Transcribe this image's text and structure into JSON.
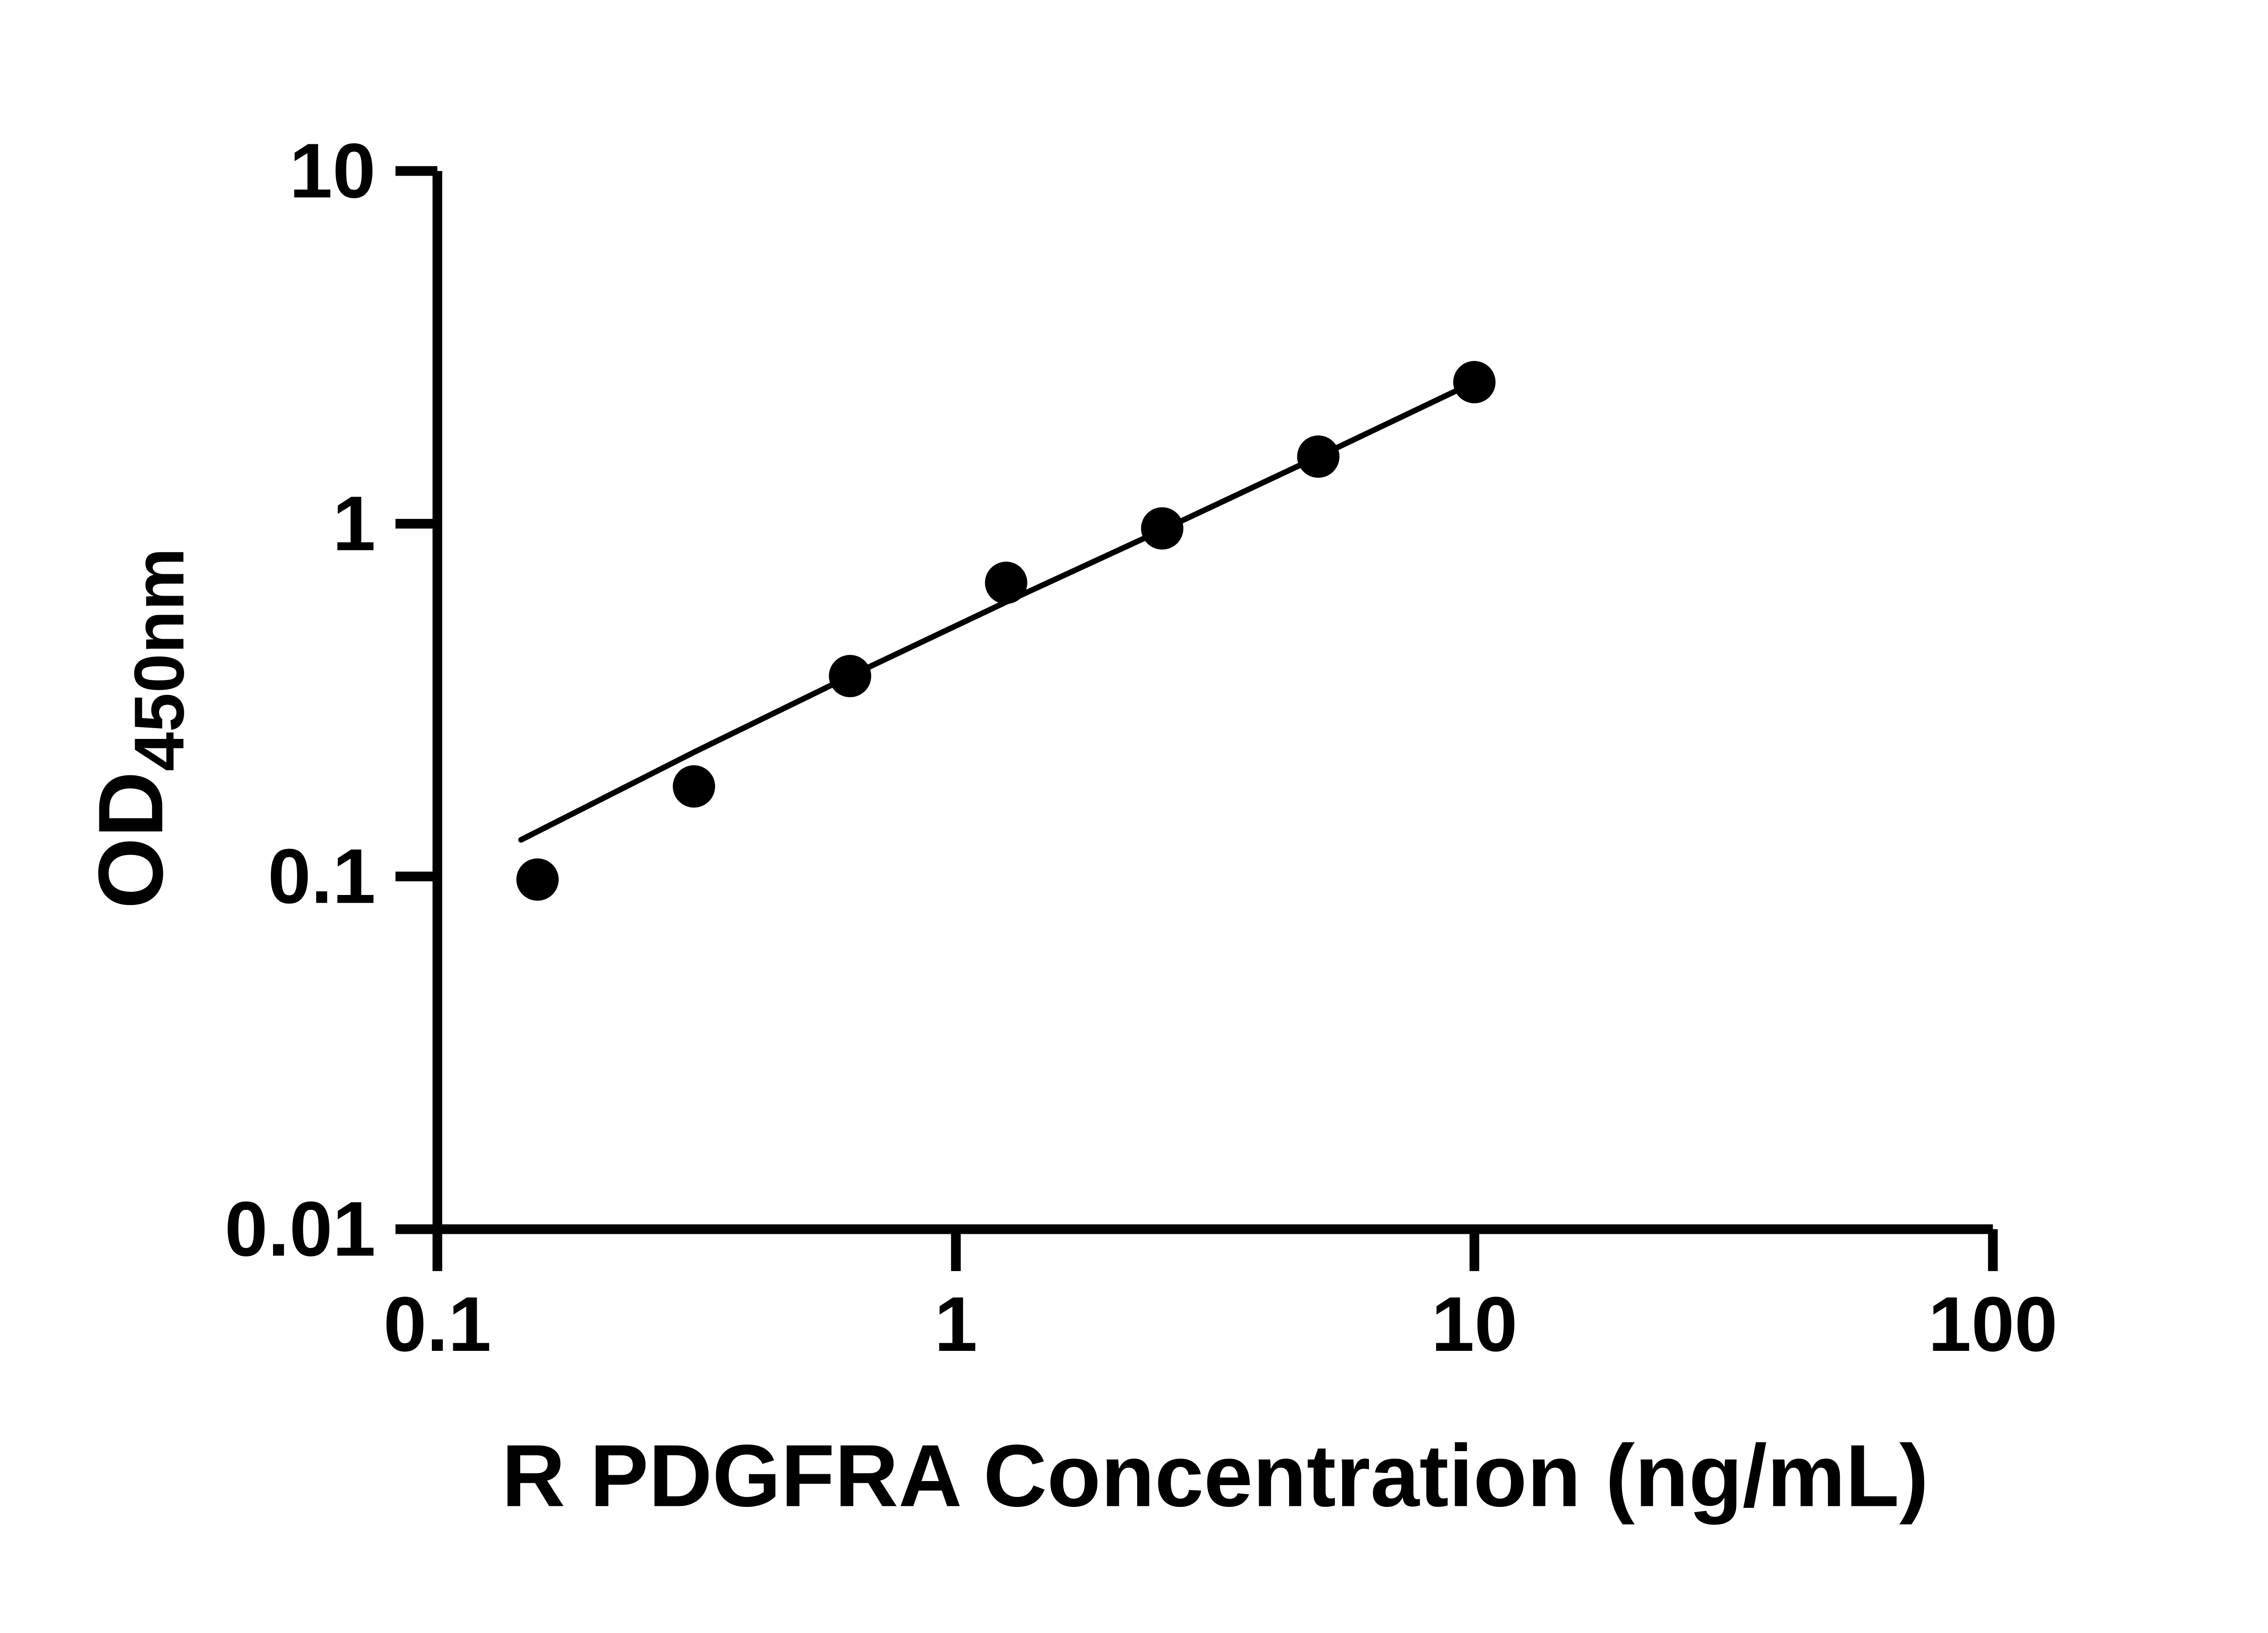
{
  "chart_data": {
    "type": "scatter",
    "title": "",
    "xlabel": "R PDGFRA Concentration (ng/mL)",
    "ylabel_main": "OD",
    "ylabel_sub": "450nm",
    "x_scale": "log",
    "y_scale": "log",
    "xlim": [
      0.1,
      100
    ],
    "ylim": [
      0.01,
      10
    ],
    "x_ticks": [
      "0.1",
      "1",
      "10",
      "100"
    ],
    "y_ticks": [
      "0.01",
      "0.1",
      "1",
      "10"
    ],
    "grid": false,
    "legend_position": "none",
    "marker_color": "#000000",
    "line_color": "#000000",
    "background_color": "#ffffff",
    "series": [
      {
        "name": "standard-points",
        "x": [
          0.156,
          0.3125,
          0.625,
          1.25,
          2.5,
          5,
          10
        ],
        "y": [
          0.098,
          0.18,
          0.37,
          0.68,
          0.97,
          1.55,
          2.52
        ]
      }
    ],
    "fit_line": {
      "name": "fitted-standard-curve",
      "x": [
        0.145,
        0.3125,
        0.625,
        1.25,
        2.5,
        5,
        10
      ],
      "y": [
        0.127,
        0.225,
        0.37,
        0.6,
        0.96,
        1.55,
        2.52
      ]
    }
  }
}
